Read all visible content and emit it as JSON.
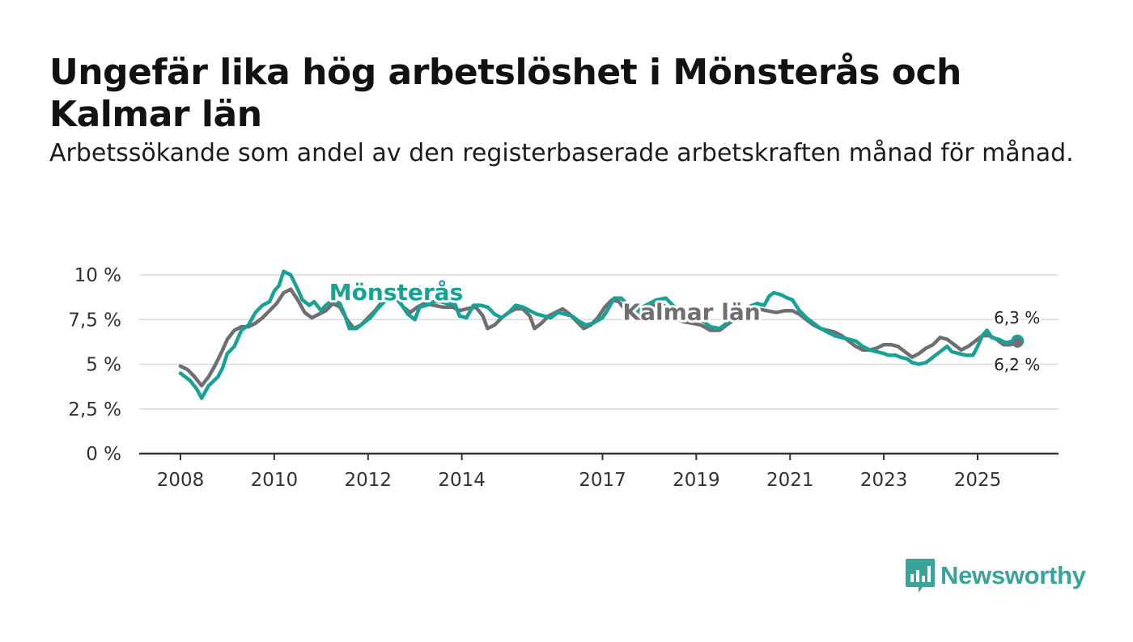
{
  "header": {
    "title": "Ungefär lika hög arbetslöshet i Mönsterås och Kalmar län",
    "subtitle": "Arbetssökande som andel av den registerbaserade arbetskraften månad för månad."
  },
  "brand": {
    "name": "Newsworthy",
    "color": "#3aa39a",
    "icon": "bar-chart-speech-bubble-icon"
  },
  "colors": {
    "monsteras": "#17a295",
    "kalmar": "#706e72",
    "grid": "#d9d9d9",
    "axis": "#333333"
  },
  "chart_data": {
    "type": "line",
    "title": "Ungefär lika hög arbetslöshet i Mönsterås och Kalmar län",
    "xlabel": "",
    "ylabel": "",
    "xlim": [
      2008,
      2026
    ],
    "ylim": [
      0,
      10
    ],
    "y_ticks": [
      {
        "value": 0,
        "label": "0 %"
      },
      {
        "value": 2.5,
        "label": "2,5 %"
      },
      {
        "value": 5,
        "label": "5 %"
      },
      {
        "value": 7.5,
        "label": "7,5 %"
      },
      {
        "value": 10,
        "label": "10 %"
      }
    ],
    "x_ticks": [
      {
        "value": 2008,
        "label": "2008"
      },
      {
        "value": 2010,
        "label": "2010"
      },
      {
        "value": 2012,
        "label": "2012"
      },
      {
        "value": 2014,
        "label": "2014"
      },
      {
        "value": 2017,
        "label": "2017"
      },
      {
        "value": 2019,
        "label": "2019"
      },
      {
        "value": 2021,
        "label": "2021"
      },
      {
        "value": 2023,
        "label": "2023"
      },
      {
        "value": 2025,
        "label": "2025"
      }
    ],
    "grid": true,
    "series": [
      {
        "name": "Mönsterås",
        "color": "#17a295",
        "label_at": [
          2012.6,
          8.6
        ],
        "end_label": "6,3 %",
        "points": [
          [
            2008.0,
            4.5
          ],
          [
            2008.2,
            4.1
          ],
          [
            2008.35,
            3.6
          ],
          [
            2008.45,
            3.1
          ],
          [
            2008.6,
            3.8
          ],
          [
            2008.8,
            4.3
          ],
          [
            2008.9,
            4.8
          ],
          [
            2009.0,
            5.6
          ],
          [
            2009.15,
            6.0
          ],
          [
            2009.3,
            6.9
          ],
          [
            2009.45,
            7.2
          ],
          [
            2009.6,
            7.9
          ],
          [
            2009.75,
            8.3
          ],
          [
            2009.9,
            8.5
          ],
          [
            2010.0,
            9.1
          ],
          [
            2010.1,
            9.4
          ],
          [
            2010.2,
            10.2
          ],
          [
            2010.35,
            10.0
          ],
          [
            2010.5,
            9.2
          ],
          [
            2010.6,
            8.6
          ],
          [
            2010.75,
            8.3
          ],
          [
            2010.85,
            8.5
          ],
          [
            2011.0,
            8.0
          ],
          [
            2011.1,
            8.3
          ],
          [
            2011.25,
            8.6
          ],
          [
            2011.4,
            8.4
          ],
          [
            2011.5,
            7.8
          ],
          [
            2011.6,
            7.0
          ],
          [
            2011.75,
            7.0
          ],
          [
            2011.9,
            7.3
          ],
          [
            2012.05,
            7.6
          ],
          [
            2012.2,
            8.1
          ],
          [
            2012.35,
            8.5
          ],
          [
            2012.45,
            8.9
          ],
          [
            2012.55,
            8.8
          ],
          [
            2012.7,
            8.4
          ],
          [
            2012.85,
            7.8
          ],
          [
            2013.0,
            7.5
          ],
          [
            2013.1,
            8.2
          ],
          [
            2013.25,
            8.3
          ],
          [
            2013.4,
            8.5
          ],
          [
            2013.55,
            8.5
          ],
          [
            2013.7,
            8.4
          ],
          [
            2013.85,
            8.4
          ],
          [
            2013.95,
            7.7
          ],
          [
            2014.1,
            7.6
          ],
          [
            2014.25,
            8.3
          ],
          [
            2014.4,
            8.3
          ],
          [
            2014.55,
            8.2
          ],
          [
            2014.7,
            7.8
          ],
          [
            2014.85,
            7.6
          ],
          [
            2015.0,
            7.9
          ],
          [
            2015.15,
            8.3
          ],
          [
            2015.3,
            8.2
          ],
          [
            2015.45,
            8.0
          ],
          [
            2015.6,
            7.8
          ],
          [
            2015.75,
            7.7
          ],
          [
            2015.9,
            7.6
          ],
          [
            2016.05,
            7.9
          ],
          [
            2016.2,
            7.8
          ],
          [
            2016.35,
            7.7
          ],
          [
            2016.5,
            7.4
          ],
          [
            2016.65,
            7.2
          ],
          [
            2016.8,
            7.3
          ],
          [
            2017.0,
            7.6
          ],
          [
            2017.1,
            8.0
          ],
          [
            2017.25,
            8.7
          ],
          [
            2017.4,
            8.7
          ],
          [
            2017.55,
            8.3
          ],
          [
            2017.7,
            7.9
          ],
          [
            2017.85,
            8.2
          ],
          [
            2018.0,
            8.4
          ],
          [
            2018.15,
            8.6
          ],
          [
            2018.35,
            8.7
          ],
          [
            2018.5,
            8.3
          ],
          [
            2018.7,
            7.9
          ],
          [
            2018.9,
            7.6
          ],
          [
            2019.1,
            7.5
          ],
          [
            2019.3,
            7.1
          ],
          [
            2019.5,
            7.0
          ],
          [
            2019.7,
            7.4
          ],
          [
            2019.9,
            7.8
          ],
          [
            2020.1,
            8.2
          ],
          [
            2020.3,
            8.4
          ],
          [
            2020.45,
            8.3
          ],
          [
            2020.55,
            8.8
          ],
          [
            2020.65,
            9.0
          ],
          [
            2020.8,
            8.9
          ],
          [
            2020.95,
            8.7
          ],
          [
            2021.05,
            8.6
          ],
          [
            2021.2,
            8.0
          ],
          [
            2021.35,
            7.6
          ],
          [
            2021.5,
            7.3
          ],
          [
            2021.65,
            7.0
          ],
          [
            2021.8,
            6.8
          ],
          [
            2021.95,
            6.6
          ],
          [
            2022.1,
            6.5
          ],
          [
            2022.25,
            6.4
          ],
          [
            2022.4,
            6.3
          ],
          [
            2022.55,
            6.0
          ],
          [
            2022.7,
            5.8
          ],
          [
            2022.85,
            5.7
          ],
          [
            2023.0,
            5.6
          ],
          [
            2023.1,
            5.5
          ],
          [
            2023.25,
            5.5
          ],
          [
            2023.35,
            5.4
          ],
          [
            2023.5,
            5.3
          ],
          [
            2023.6,
            5.1
          ],
          [
            2023.75,
            5.0
          ],
          [
            2023.9,
            5.1
          ],
          [
            2024.05,
            5.4
          ],
          [
            2024.2,
            5.7
          ],
          [
            2024.35,
            6.0
          ],
          [
            2024.45,
            5.7
          ],
          [
            2024.6,
            5.6
          ],
          [
            2024.75,
            5.5
          ],
          [
            2024.9,
            5.5
          ],
          [
            2025.0,
            6.0
          ],
          [
            2025.1,
            6.6
          ],
          [
            2025.2,
            6.9
          ],
          [
            2025.3,
            6.5
          ],
          [
            2025.45,
            6.4
          ],
          [
            2025.6,
            6.2
          ],
          [
            2025.75,
            6.3
          ],
          [
            2025.85,
            6.3
          ]
        ]
      },
      {
        "name": "Kalmar län",
        "color": "#706e72",
        "label_at": [
          2018.9,
          7.5
        ],
        "end_label": "6,2 %",
        "points": [
          [
            2008.0,
            4.9
          ],
          [
            2008.15,
            4.7
          ],
          [
            2008.3,
            4.3
          ],
          [
            2008.45,
            3.8
          ],
          [
            2008.6,
            4.3
          ],
          [
            2008.75,
            5.0
          ],
          [
            2008.9,
            5.8
          ],
          [
            2009.0,
            6.4
          ],
          [
            2009.15,
            6.9
          ],
          [
            2009.3,
            7.1
          ],
          [
            2009.45,
            7.1
          ],
          [
            2009.6,
            7.3
          ],
          [
            2009.75,
            7.6
          ],
          [
            2009.9,
            8.0
          ],
          [
            2010.05,
            8.4
          ],
          [
            2010.2,
            9.0
          ],
          [
            2010.35,
            9.2
          ],
          [
            2010.5,
            8.6
          ],
          [
            2010.65,
            7.9
          ],
          [
            2010.8,
            7.6
          ],
          [
            2010.95,
            7.8
          ],
          [
            2011.1,
            8.0
          ],
          [
            2011.25,
            8.4
          ],
          [
            2011.4,
            8.2
          ],
          [
            2011.55,
            7.5
          ],
          [
            2011.7,
            7.0
          ],
          [
            2011.85,
            7.2
          ],
          [
            2012.0,
            7.6
          ],
          [
            2012.15,
            8.0
          ],
          [
            2012.3,
            8.5
          ],
          [
            2012.45,
            8.9
          ],
          [
            2012.6,
            8.7
          ],
          [
            2012.75,
            8.2
          ],
          [
            2012.9,
            7.9
          ],
          [
            2013.05,
            8.2
          ],
          [
            2013.2,
            8.4
          ],
          [
            2013.4,
            8.3
          ],
          [
            2013.6,
            8.2
          ],
          [
            2013.8,
            8.2
          ],
          [
            2013.95,
            8.0
          ],
          [
            2014.1,
            8.1
          ],
          [
            2014.3,
            8.2
          ],
          [
            2014.45,
            7.7
          ],
          [
            2014.55,
            7.0
          ],
          [
            2014.7,
            7.2
          ],
          [
            2014.85,
            7.6
          ],
          [
            2015.0,
            7.9
          ],
          [
            2015.15,
            8.1
          ],
          [
            2015.3,
            8.1
          ],
          [
            2015.45,
            7.7
          ],
          [
            2015.55,
            7.0
          ],
          [
            2015.7,
            7.3
          ],
          [
            2015.85,
            7.7
          ],
          [
            2016.0,
            7.9
          ],
          [
            2016.15,
            8.1
          ],
          [
            2016.3,
            7.8
          ],
          [
            2016.45,
            7.4
          ],
          [
            2016.6,
            7.0
          ],
          [
            2016.75,
            7.2
          ],
          [
            2016.9,
            7.6
          ],
          [
            2017.05,
            8.2
          ],
          [
            2017.2,
            8.6
          ],
          [
            2017.35,
            8.5
          ],
          [
            2017.5,
            8.0
          ],
          [
            2017.65,
            7.6
          ],
          [
            2017.8,
            7.8
          ],
          [
            2017.95,
            8.2
          ],
          [
            2018.1,
            8.3
          ],
          [
            2018.25,
            8.4
          ],
          [
            2018.4,
            8.1
          ],
          [
            2018.55,
            7.6
          ],
          [
            2018.7,
            7.4
          ],
          [
            2018.9,
            7.3
          ],
          [
            2019.1,
            7.2
          ],
          [
            2019.3,
            6.9
          ],
          [
            2019.5,
            6.9
          ],
          [
            2019.7,
            7.3
          ],
          [
            2019.9,
            7.6
          ],
          [
            2020.1,
            7.9
          ],
          [
            2020.3,
            8.1
          ],
          [
            2020.5,
            8.0
          ],
          [
            2020.7,
            7.9
          ],
          [
            2020.9,
            8.0
          ],
          [
            2021.05,
            8.0
          ],
          [
            2021.2,
            7.8
          ],
          [
            2021.35,
            7.5
          ],
          [
            2021.5,
            7.2
          ],
          [
            2021.65,
            7.0
          ],
          [
            2021.8,
            6.9
          ],
          [
            2021.95,
            6.8
          ],
          [
            2022.1,
            6.6
          ],
          [
            2022.25,
            6.3
          ],
          [
            2022.4,
            6.0
          ],
          [
            2022.55,
            5.8
          ],
          [
            2022.7,
            5.8
          ],
          [
            2022.85,
            5.9
          ],
          [
            2023.0,
            6.1
          ],
          [
            2023.15,
            6.1
          ],
          [
            2023.3,
            6.0
          ],
          [
            2023.45,
            5.7
          ],
          [
            2023.6,
            5.4
          ],
          [
            2023.75,
            5.6
          ],
          [
            2023.9,
            5.9
          ],
          [
            2024.05,
            6.1
          ],
          [
            2024.2,
            6.5
          ],
          [
            2024.35,
            6.4
          ],
          [
            2024.5,
            6.1
          ],
          [
            2024.65,
            5.8
          ],
          [
            2024.8,
            6.0
          ],
          [
            2024.95,
            6.3
          ],
          [
            2025.1,
            6.6
          ],
          [
            2025.25,
            6.6
          ],
          [
            2025.4,
            6.4
          ],
          [
            2025.55,
            6.1
          ],
          [
            2025.7,
            6.1
          ],
          [
            2025.85,
            6.2
          ]
        ]
      }
    ]
  }
}
